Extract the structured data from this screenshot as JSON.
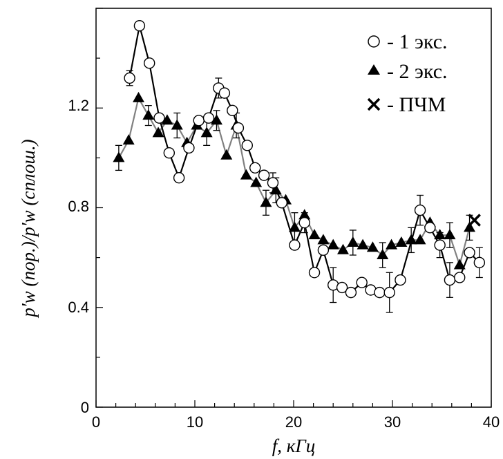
{
  "chart_data": {
    "type": "scatter",
    "xlabel": "f, кГц",
    "ylabel": "p′w (пор.)/p′w (сплош.)",
    "xlim": [
      0,
      40
    ],
    "ylim": [
      0,
      1.6
    ],
    "x_ticks": [
      0,
      10,
      20,
      30,
      40
    ],
    "y_ticks": [
      0,
      0.4,
      0.8,
      1.2
    ],
    "y_tick_labels": [
      "0",
      "0.4",
      "0.8",
      "1.2"
    ],
    "grid": false,
    "legend_position": "top-right",
    "legend": [
      {
        "marker": "circle",
        "label": "- 1 экс."
      },
      {
        "marker": "triangle",
        "label": "- 2 экс."
      },
      {
        "marker": "cross",
        "label": "- ПЧМ"
      }
    ],
    "series": [
      {
        "marker": "circle",
        "line_color": "#000000",
        "x": [
          3.4,
          4.4,
          5.4,
          6.4,
          7.4,
          8.4,
          9.4,
          10.4,
          11.4,
          12.4,
          13.0,
          13.8,
          14.4,
          15.3,
          16.1,
          17.0,
          17.9,
          18.8,
          20.1,
          21.1,
          22.1,
          23.0,
          24.0,
          24.9,
          25.8,
          26.9,
          27.8,
          28.7,
          29.7,
          30.8,
          32.8,
          33.8,
          34.8,
          35.8,
          36.8,
          37.8,
          38.8
        ],
        "y": [
          1.32,
          1.53,
          1.38,
          1.16,
          1.02,
          0.92,
          1.04,
          1.15,
          1.16,
          1.28,
          1.26,
          1.19,
          1.12,
          1.05,
          0.96,
          0.93,
          0.9,
          0.82,
          0.65,
          0.74,
          0.54,
          0.63,
          0.49,
          0.48,
          0.46,
          0.5,
          0.47,
          0.46,
          0.46,
          0.51,
          0.79,
          0.72,
          0.65,
          0.51,
          0.52,
          0.62,
          0.58
        ],
        "error": [
          0.03,
          0,
          0,
          0,
          0,
          0,
          0,
          0,
          0,
          0.04,
          0,
          0,
          0,
          0,
          0,
          0,
          0.04,
          0,
          0,
          0.04,
          0,
          0,
          0.07,
          0,
          0,
          0,
          0,
          0,
          0.08,
          0,
          0.06,
          0,
          0.05,
          0.07,
          0,
          0,
          0.06
        ]
      },
      {
        "marker": "triangle",
        "line_color": "#808080",
        "x": [
          2.3,
          3.3,
          4.3,
          5.3,
          6.3,
          7.2,
          8.2,
          9.2,
          10.2,
          11.2,
          12.2,
          13.2,
          14.2,
          15.2,
          16.2,
          17.2,
          18.2,
          19.2,
          20.1,
          21.1,
          22.1,
          23.0,
          24.0,
          25.0,
          26.0,
          27.0,
          28.0,
          29.0,
          29.9,
          30.9,
          31.9,
          32.8,
          33.8,
          34.8,
          35.8,
          36.8,
          37.8
        ],
        "y": [
          1.0,
          1.07,
          1.24,
          1.17,
          1.1,
          1.15,
          1.13,
          1.06,
          1.13,
          1.1,
          1.15,
          1.01,
          1.13,
          0.93,
          0.9,
          0.82,
          0.87,
          0.83,
          0.72,
          0.77,
          0.69,
          0.67,
          0.65,
          0.63,
          0.66,
          0.65,
          0.64,
          0.61,
          0.65,
          0.66,
          0.67,
          0.67,
          0.74,
          0.69,
          0.69,
          0.57,
          0.72
        ],
        "error": [
          0.05,
          0,
          0,
          0.04,
          0,
          0,
          0.05,
          0,
          0,
          0.05,
          0.04,
          0,
          0.05,
          0,
          0,
          0.05,
          0.05,
          0,
          0.06,
          0,
          0,
          0,
          0,
          0,
          0.05,
          0,
          0,
          0.05,
          0,
          0,
          0.05,
          0,
          0,
          0,
          0.05,
          0,
          0.05
        ]
      },
      {
        "marker": "cross",
        "x": [
          38.3
        ],
        "y": [
          0.75
        ]
      }
    ]
  }
}
